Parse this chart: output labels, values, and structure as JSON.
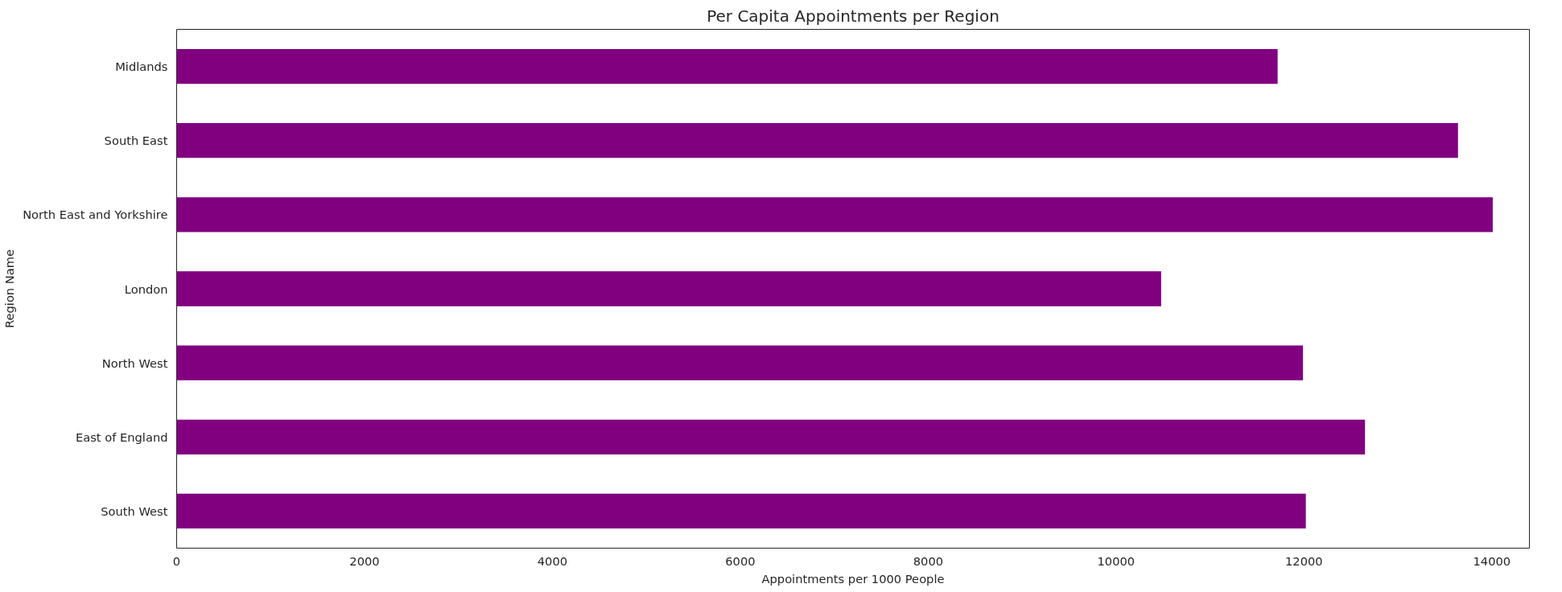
{
  "chart_data": {
    "type": "bar",
    "orientation": "horizontal",
    "title": "Per Capita Appointments per Region",
    "xlabel": "Appointments per 1000 People",
    "ylabel": "Region Name",
    "categories": [
      "Midlands",
      "South East",
      "North East and Yorkshire",
      "London",
      "North West",
      "East of England",
      "South West"
    ],
    "values": [
      11720,
      13640,
      14010,
      10480,
      11990,
      12650,
      12020
    ],
    "color": "#800080",
    "xlim": [
      0,
      14400
    ],
    "xticks": [
      0,
      2000,
      4000,
      6000,
      8000,
      10000,
      12000,
      14000
    ],
    "grid": false
  }
}
